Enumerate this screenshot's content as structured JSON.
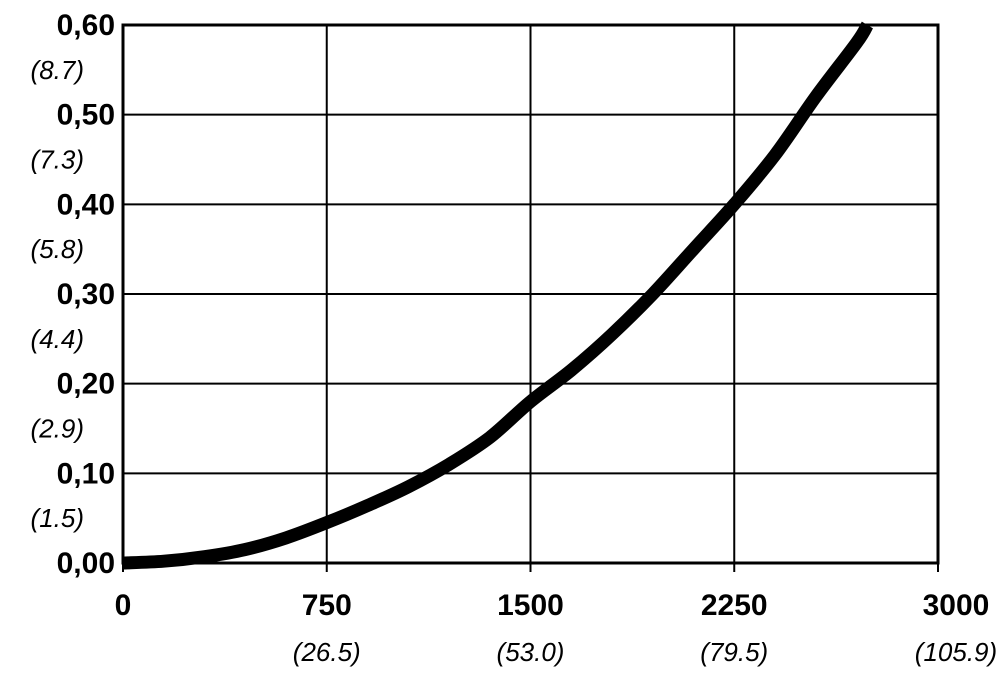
{
  "chart_data": {
    "type": "line",
    "title": "",
    "xlabel": "",
    "ylabel": "",
    "grid": true,
    "xlim": [
      0,
      3000
    ],
    "ylim": [
      0,
      0.6
    ],
    "x_ticks": [
      {
        "value": 0,
        "label": "0",
        "sublabel": ""
      },
      {
        "value": 750,
        "label": "750",
        "sublabel": "(26.5)"
      },
      {
        "value": 1500,
        "label": "1500",
        "sublabel": "(53.0)"
      },
      {
        "value": 2250,
        "label": "2250",
        "sublabel": "(79.5)"
      },
      {
        "value": 3000,
        "label": "3000",
        "sublabel": "(105.9)"
      }
    ],
    "y_ticks": [
      {
        "value": 0.0,
        "label": "0,00",
        "sublabel": ""
      },
      {
        "value": 0.1,
        "label": "0,10",
        "sublabel": "(1.5)"
      },
      {
        "value": 0.2,
        "label": "0,20",
        "sublabel": "(2.9)"
      },
      {
        "value": 0.3,
        "label": "0,30",
        "sublabel": "(4.4)"
      },
      {
        "value": 0.4,
        "label": "0,40",
        "sublabel": "(5.8)"
      },
      {
        "value": 0.5,
        "label": "0,50",
        "sublabel": "(7.3)"
      },
      {
        "value": 0.6,
        "label": "0,60",
        "sublabel": "(8.7)"
      }
    ],
    "series": [
      {
        "color": "#000000",
        "x": [
          0,
          150,
          300,
          450,
          600,
          750,
          900,
          1050,
          1200,
          1350,
          1500,
          1650,
          1800,
          1950,
          2100,
          2250,
          2400,
          2550,
          2700,
          2740
        ],
        "y": [
          0.0,
          0.002,
          0.007,
          0.015,
          0.028,
          0.045,
          0.064,
          0.085,
          0.11,
          0.14,
          0.18,
          0.215,
          0.255,
          0.3,
          0.35,
          0.4,
          0.455,
          0.52,
          0.58,
          0.6
        ]
      }
    ]
  }
}
